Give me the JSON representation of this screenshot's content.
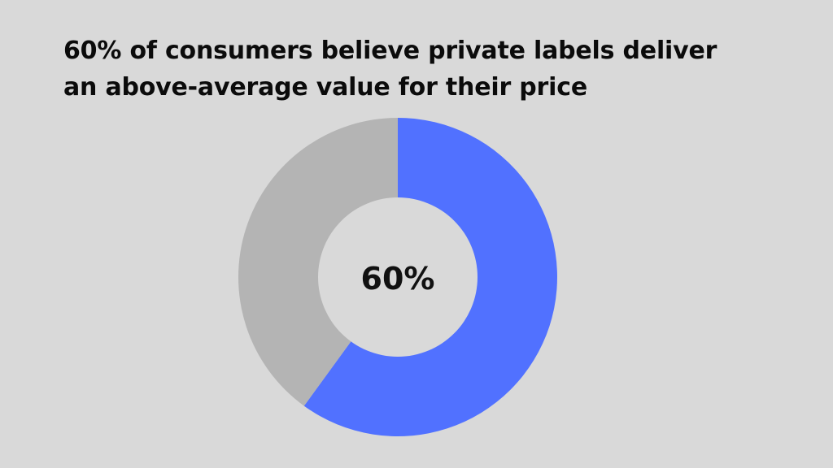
{
  "title_lines": [
    "60% of consumers believe private labels deliver",
    "an above-average value for their price"
  ],
  "chart_data": {
    "type": "pie",
    "style": "donut",
    "title": "60% of consumers believe private labels deliver an above-average value for their price",
    "center_label": "60%",
    "slices": [
      {
        "value": 60,
        "color": "#5171ff"
      },
      {
        "value": 40,
        "color": "#b4b4b4"
      }
    ],
    "start_angle": "12 o'clock",
    "direction": "clockwise"
  },
  "colors": {
    "background": "#d9d9d9",
    "primary": "#5171ff",
    "secondary": "#b4b4b4",
    "text": "#0b0b0b"
  }
}
